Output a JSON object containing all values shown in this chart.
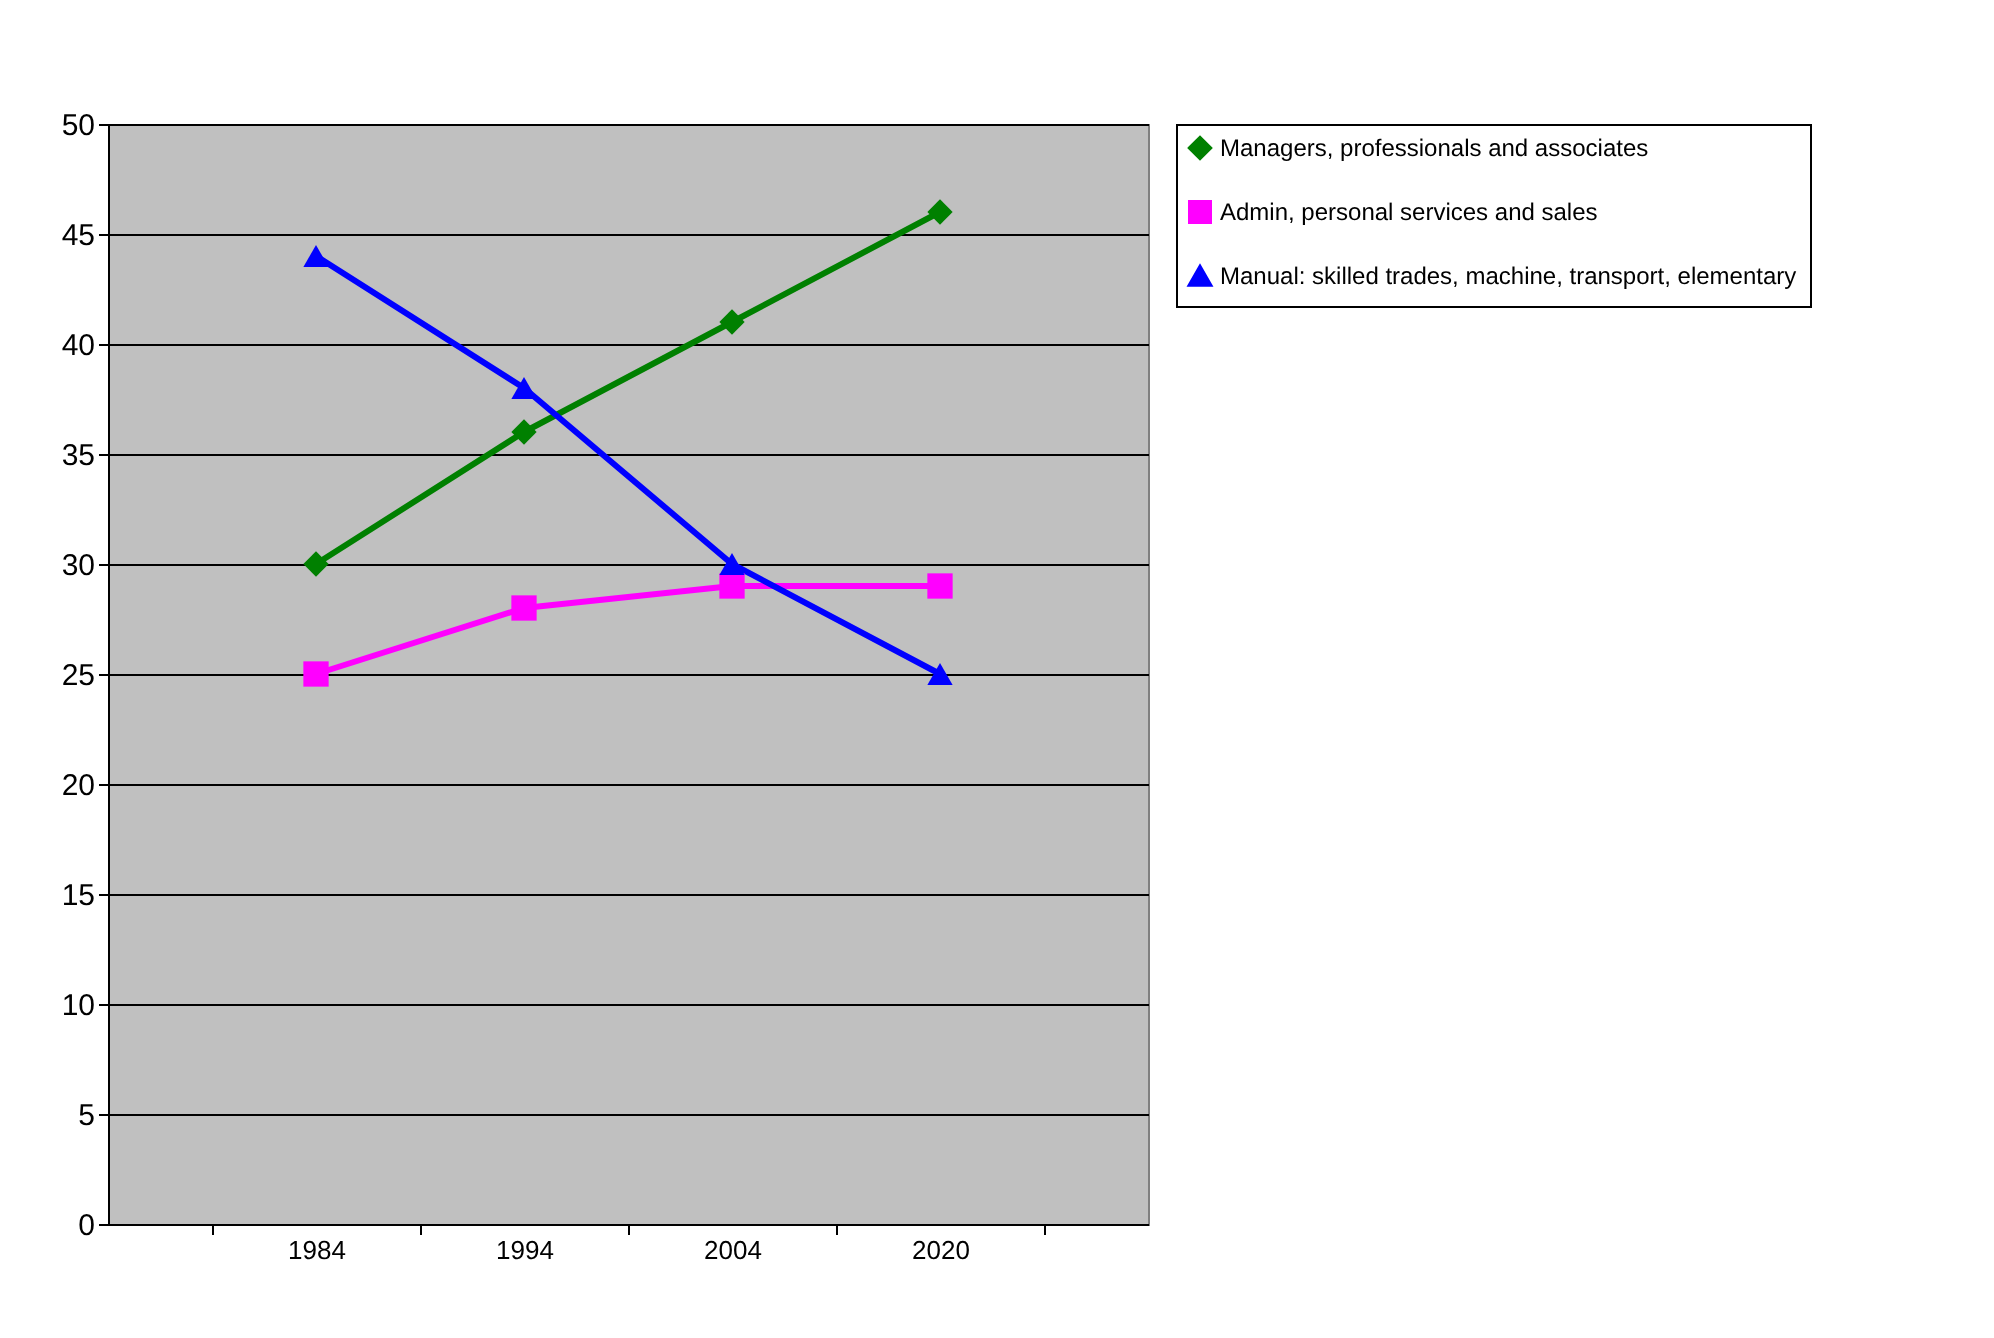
{
  "chart_data": {
    "type": "line",
    "categories": [
      "1984",
      "1994",
      "2004",
      "2020"
    ],
    "series": [
      {
        "name": "Managers, professionals and associates",
        "color": "#008000",
        "marker": "diamond",
        "values": [
          30,
          36,
          41,
          46
        ]
      },
      {
        "name": "Admin, personal services and sales",
        "color": "#ff00ff",
        "marker": "square",
        "values": [
          25,
          28,
          29,
          29
        ]
      },
      {
        "name": "Manual: skilled trades, machine, transport, elementary",
        "color": "#0000ff",
        "marker": "triangle",
        "values": [
          44,
          38,
          30,
          25
        ]
      }
    ],
    "ylim": [
      0,
      50
    ],
    "yticks": [
      0,
      5,
      10,
      15,
      20,
      25,
      30,
      35,
      40,
      45,
      50
    ],
    "grid": "y",
    "legend": "right"
  }
}
